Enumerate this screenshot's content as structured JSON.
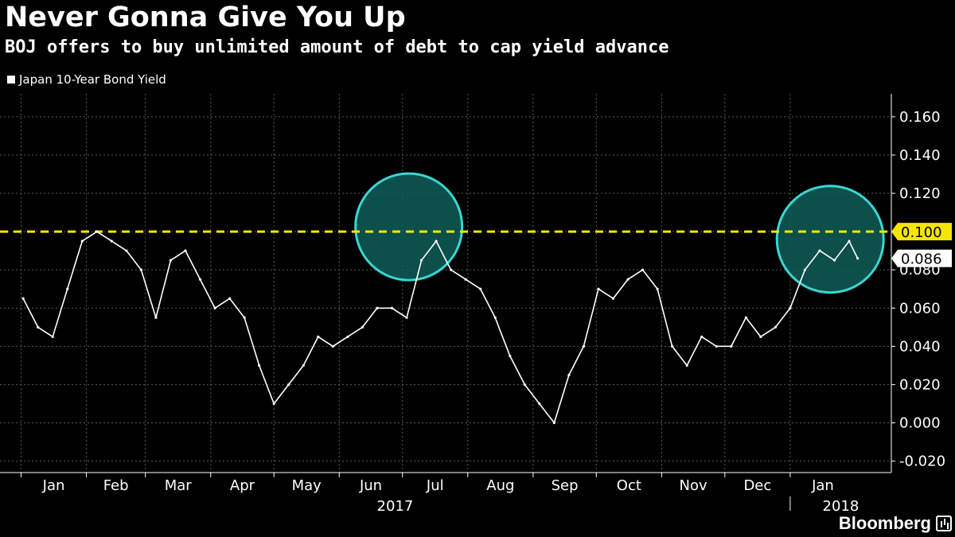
{
  "title": "Never Gonna Give You Up",
  "subtitle": "BOJ offers to buy unlimited amount of debt to cap yield advance",
  "legend": {
    "label": "Japan 10-Year Bond Yield",
    "color": "#ffffff"
  },
  "brand": {
    "name": "Bloomberg",
    "icon": "bloomberg-chart-icon"
  },
  "colors": {
    "background": "#000000",
    "grid": "#5a5a5a",
    "series": "#ffffff",
    "cap_line": "#f5e600",
    "circle_fill": "#0e5d58",
    "circle_stroke": "#3ad6d2",
    "cap_label_bg": "#f5e600",
    "last_label_bg": "#ffffff"
  },
  "chart_data": {
    "type": "line",
    "title": "Never Gonna Give You Up",
    "subtitle": "BOJ offers to buy unlimited amount of debt to cap yield advance",
    "series": [
      {
        "name": "Japan 10-Year Bond Yield",
        "x": [
          "2017-01-02",
          "2017-01-09",
          "2017-01-16",
          "2017-01-23",
          "2017-01-30",
          "2017-02-06",
          "2017-02-13",
          "2017-02-20",
          "2017-02-27",
          "2017-03-06",
          "2017-03-13",
          "2017-03-20",
          "2017-03-27",
          "2017-04-03",
          "2017-04-10",
          "2017-04-17",
          "2017-04-24",
          "2017-05-01",
          "2017-05-08",
          "2017-05-15",
          "2017-05-22",
          "2017-05-29",
          "2017-06-05",
          "2017-06-12",
          "2017-06-19",
          "2017-06-26",
          "2017-07-03",
          "2017-07-10",
          "2017-07-17",
          "2017-07-24",
          "2017-07-31",
          "2017-08-07",
          "2017-08-14",
          "2017-08-21",
          "2017-08-28",
          "2017-09-04",
          "2017-09-11",
          "2017-09-18",
          "2017-09-25",
          "2017-10-02",
          "2017-10-09",
          "2017-10-16",
          "2017-10-23",
          "2017-10-30",
          "2017-11-06",
          "2017-11-13",
          "2017-11-20",
          "2017-11-27",
          "2017-12-04",
          "2017-12-11",
          "2017-12-18",
          "2017-12-25",
          "2018-01-01",
          "2018-01-08",
          "2018-01-15",
          "2018-01-22",
          "2018-01-29",
          "2018-02-02"
        ],
        "values": [
          0.065,
          0.05,
          0.045,
          0.07,
          0.095,
          0.1,
          0.095,
          0.09,
          0.08,
          0.055,
          0.085,
          0.09,
          0.075,
          0.06,
          0.065,
          0.055,
          0.03,
          0.01,
          0.02,
          0.03,
          0.045,
          0.04,
          0.045,
          0.05,
          0.06,
          0.06,
          0.055,
          0.085,
          0.095,
          0.08,
          0.075,
          0.07,
          0.055,
          0.035,
          0.02,
          0.01,
          0.0,
          0.025,
          0.04,
          0.07,
          0.065,
          0.075,
          0.08,
          0.07,
          0.04,
          0.03,
          0.045,
          0.04,
          0.04,
          0.055,
          0.045,
          0.05,
          0.06,
          0.08,
          0.09,
          0.085,
          0.095,
          0.086
        ]
      }
    ],
    "x_ticks": [
      "Jan",
      "Feb",
      "Mar",
      "Apr",
      "May",
      "Jun",
      "Jul",
      "Aug",
      "Sep",
      "Oct",
      "Nov",
      "Dec",
      "Jan"
    ],
    "x_tick_dates": [
      "2017-01-01",
      "2017-02-01",
      "2017-03-01",
      "2017-04-01",
      "2017-05-01",
      "2017-06-01",
      "2017-07-01",
      "2017-08-01",
      "2017-09-01",
      "2017-10-01",
      "2017-11-01",
      "2017-12-01",
      "2018-01-01"
    ],
    "year_labels": [
      "2017",
      "2018"
    ],
    "y_ticks": [
      "0.160",
      "0.140",
      "0.120",
      "0.100",
      "0.080",
      "0.060",
      "0.040",
      "0.020",
      "0.000",
      "-0.020"
    ],
    "y_tick_values": [
      0.16,
      0.14,
      0.12,
      0.1,
      0.08,
      0.06,
      0.04,
      0.02,
      0.0,
      -0.02
    ],
    "xlim": [
      "2016-12-22",
      "2018-02-18"
    ],
    "ylim": [
      -0.026,
      0.172
    ],
    "grid": true,
    "legend_position": "top-left",
    "reference_line": {
      "value": 0.1,
      "label": "0.100",
      "style": "dashed"
    },
    "last_value": {
      "value": 0.086,
      "label": "0.086"
    },
    "highlights": [
      {
        "center_x": "2017-07-04",
        "center_y": 0.1025
      },
      {
        "center_x": "2018-01-20",
        "center_y": 0.096
      }
    ]
  }
}
